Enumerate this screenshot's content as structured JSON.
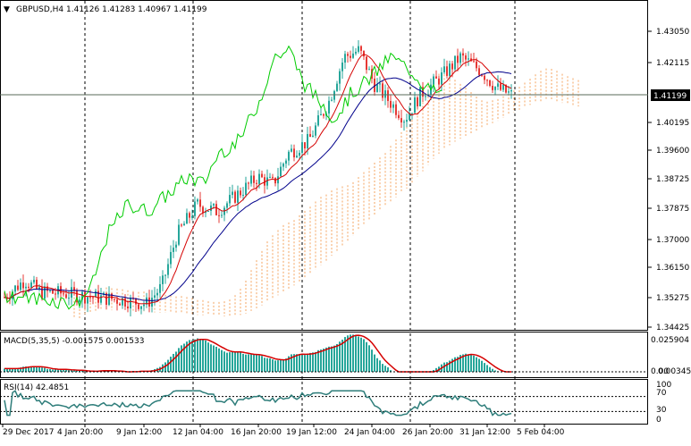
{
  "header": {
    "symbol_line": "GBPUSD,H4  1.41126 1.41283 1.40967 1.41199",
    "dropdown_arrow": "triangle-down-icon"
  },
  "price_axis": {
    "ticks": [
      "1.43050",
      "1.42115",
      "1.41199",
      "1.40195",
      "1.39600",
      "1.38725",
      "1.37875",
      "1.37000",
      "1.36150",
      "1.35275",
      "1.34425"
    ],
    "current_price": "1.41199"
  },
  "macd": {
    "label": "MACD(5,35,5) -0.001575 0.001533",
    "ticks": [
      "0.025904",
      "0.003458",
      "0.00"
    ]
  },
  "rsi": {
    "label": "RSI(14) 42.4851",
    "ticks": [
      "100",
      "70",
      "30",
      "0"
    ]
  },
  "time_axis": {
    "labels": [
      "29 Dec 2017",
      "4 Jan 20:00",
      "9 Jan 12:00",
      "12 Jan 04:00",
      "16 Jan 20:00",
      "19 Jan 12:00",
      "24 Jan 04:00",
      "26 Jan 20:00",
      "31 Jan 12:00",
      "5 Feb 04:00"
    ]
  },
  "colors": {
    "bull": "#26a69a",
    "bear": "#e53935",
    "kijun": "#d50000",
    "tenkan": "#00008b",
    "chikou": "#00cc00",
    "cloud": "#f4a460",
    "macd_hist": "#26a69a",
    "macd_signal": "#d50000",
    "rsi_line": "#2e7d7a"
  }
}
